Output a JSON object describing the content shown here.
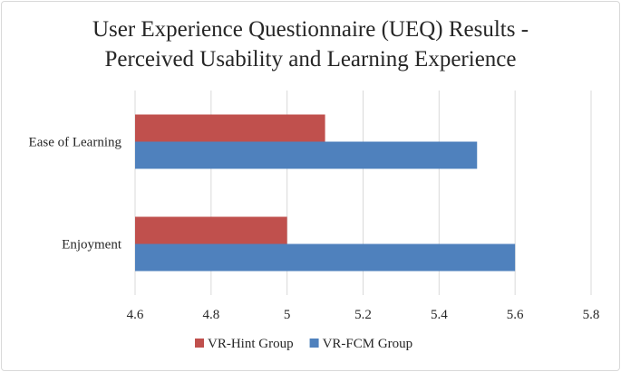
{
  "chart_data": {
    "type": "bar",
    "orientation": "horizontal",
    "title": "User Experience Questionnaire (UEQ) Results - Perceived Usability and Learning Experience",
    "title_lines": [
      "User Experience Questionnaire (UEQ) Results -",
      "Perceived Usability and Learning Experience"
    ],
    "categories": [
      "Ease of Learning",
      "Enjoyment"
    ],
    "series": [
      {
        "name": "VR-Hint Group",
        "values": [
          5.1,
          5.0
        ],
        "color": "#c0504d"
      },
      {
        "name": "VR-FCM Group",
        "values": [
          5.5,
          5.6
        ],
        "color": "#4f81bd"
      }
    ],
    "xlim": [
      4.6,
      5.8
    ],
    "xticks": [
      4.6,
      4.8,
      5.0,
      5.2,
      5.4,
      5.6,
      5.8
    ],
    "xtick_labels": [
      "4.6",
      "4.8",
      "5",
      "5.2",
      "5.4",
      "5.6",
      "5.8"
    ],
    "grid": true,
    "legend": "bottom",
    "xlabel": "",
    "ylabel": ""
  }
}
